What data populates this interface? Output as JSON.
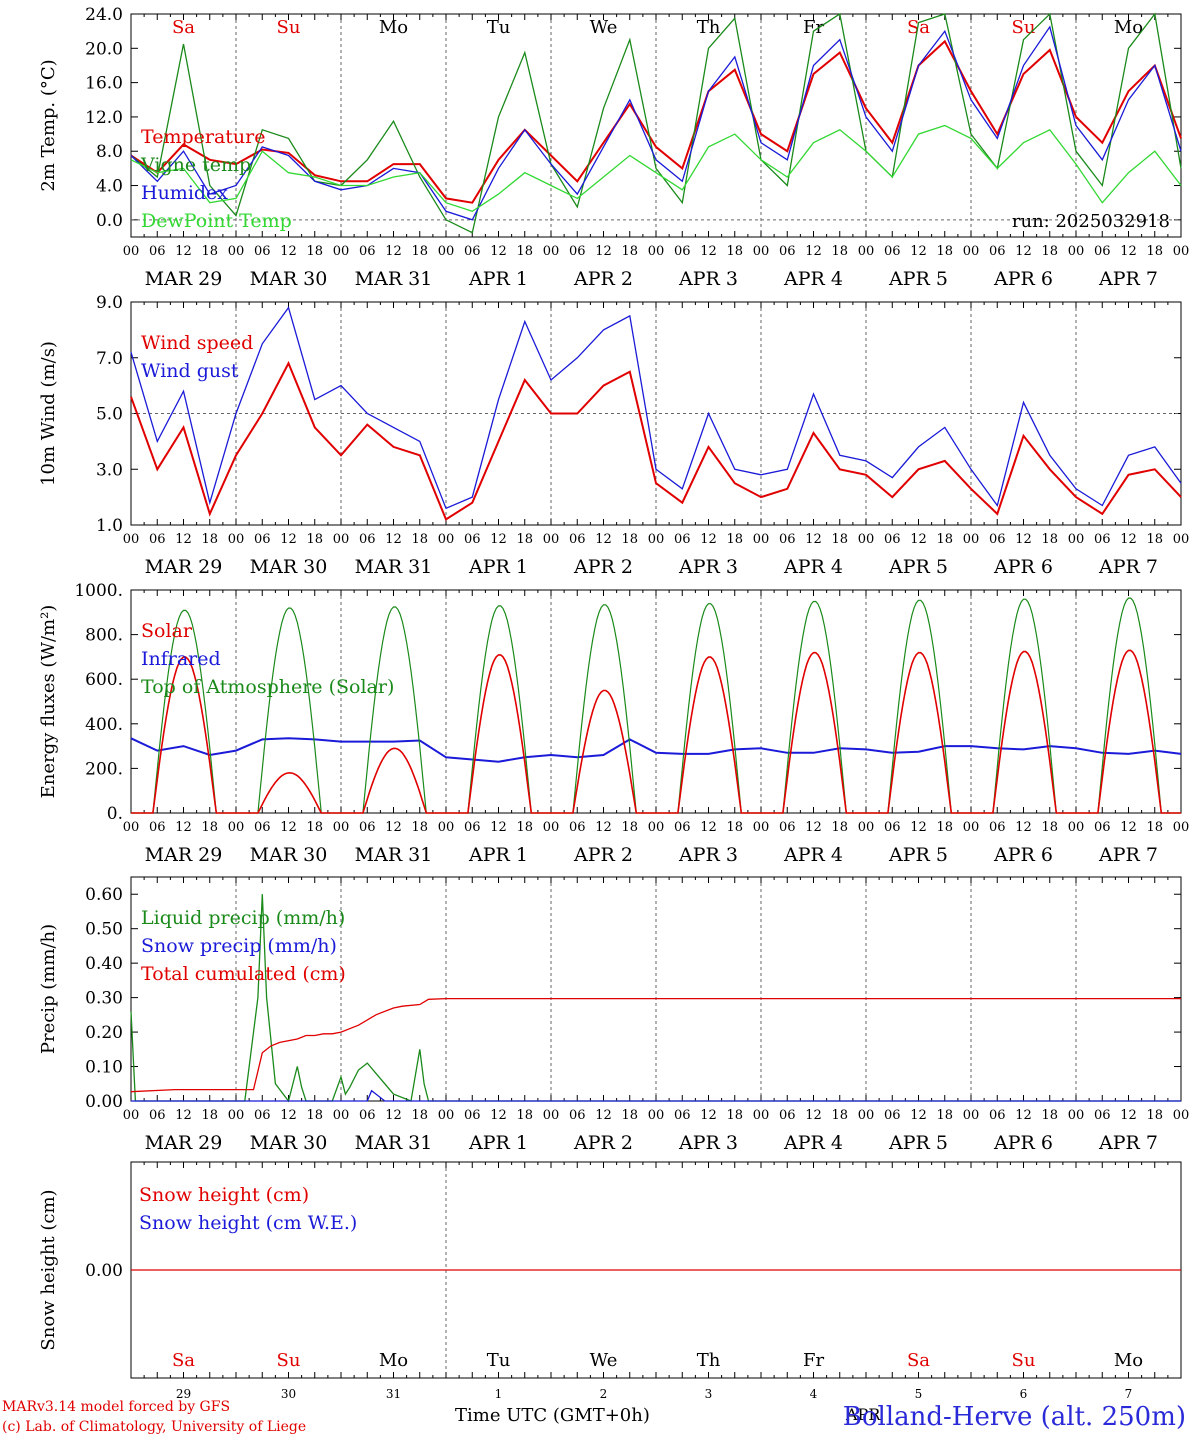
{
  "footer": {
    "model": "MARv3.14 model forced by GFS",
    "lab": "(c) Lab. of Climatology, University of Liege",
    "xlabel": "Time UTC (GMT+0h)",
    "station": "Bolland-Herve (alt. 250m)",
    "month": "APR"
  },
  "days": {
    "weekdays": [
      "Sa",
      "Su",
      "Mo",
      "Tu",
      "We",
      "Th",
      "Fr",
      "Sa",
      "Su",
      "Mo"
    ],
    "weekend_color": "#e00000",
    "weekday_color": "#000000",
    "date_labels": [
      "MAR 29",
      "MAR 30",
      "MAR 31",
      "APR  1",
      "APR  2",
      "APR  3",
      "APR  4",
      "APR  5",
      "APR  6",
      "APR  7"
    ],
    "day_numbers": [
      "29",
      "30",
      "31",
      "1",
      "2",
      "3",
      "4",
      "5",
      "6",
      "7"
    ],
    "hour_ticks": [
      "00",
      "06",
      "12",
      "18"
    ],
    "final_tick": "00"
  },
  "chart_data": [
    {
      "type": "line",
      "ylabel": "2m Temp. (°C)",
      "ylim": [
        -2,
        24
      ],
      "yticks": [
        "24.0",
        "20.0",
        "16.0",
        "12.0",
        "8.0",
        "4.0",
        "0.0"
      ],
      "ytick_values": [
        24,
        20,
        16,
        12,
        8,
        4,
        0
      ],
      "annotation": "run: 2025032918",
      "dashed_y": 0,
      "x_unit": "hours since MAR 29 00 UTC",
      "series": [
        {
          "name": "Temperature",
          "color": "#e00000",
          "x": [
            0,
            6,
            12,
            18,
            24,
            30,
            36,
            42,
            48,
            54,
            60,
            66,
            72,
            78,
            84,
            90,
            96,
            102,
            108,
            114,
            120,
            126,
            132,
            138,
            144,
            150,
            156,
            162,
            168,
            174,
            180,
            186,
            192,
            198,
            204,
            210,
            216,
            222,
            228,
            234,
            240
          ],
          "values": [
            7.5,
            5.5,
            8.8,
            7.0,
            6.5,
            8.2,
            7.8,
            5.2,
            4.5,
            4.5,
            6.5,
            6.5,
            2.5,
            2.0,
            7.0,
            10.5,
            7.5,
            4.5,
            9.0,
            13.5,
            8.5,
            6.0,
            15.0,
            17.5,
            10.0,
            8.0,
            17.0,
            19.5,
            13.0,
            9.0,
            18.0,
            20.8,
            15.0,
            10.0,
            17.0,
            19.8,
            12.0,
            9.0,
            15.0,
            18.0,
            9.5
          ]
        },
        {
          "name": "Vigne temp",
          "color": "#1a8a1a",
          "x": [
            0,
            6,
            12,
            18,
            24,
            30,
            36,
            42,
            48,
            54,
            60,
            66,
            72,
            78,
            84,
            90,
            96,
            102,
            108,
            114,
            120,
            126,
            132,
            138,
            144,
            150,
            156,
            162,
            168,
            174,
            180,
            186,
            192,
            198,
            204,
            210,
            216,
            222,
            228,
            234,
            240
          ],
          "values": [
            7.5,
            5.0,
            20.5,
            4.0,
            0.5,
            10.5,
            9.5,
            4.5,
            4.0,
            7.0,
            11.5,
            5.0,
            0.0,
            -1.5,
            12.0,
            19.5,
            6.5,
            1.5,
            13.0,
            21.0,
            6.0,
            2.0,
            20.0,
            23.5,
            7.0,
            4.0,
            22.0,
            24.0,
            8.0,
            5.0,
            23.0,
            24.0,
            10.0,
            6.0,
            21.0,
            24.0,
            8.0,
            4.0,
            20.0,
            24.0,
            6.0
          ]
        },
        {
          "name": "Humidex",
          "color": "#1a1ad8",
          "x": [
            0,
            6,
            12,
            18,
            24,
            30,
            36,
            42,
            48,
            54,
            60,
            66,
            72,
            78,
            84,
            90,
            96,
            102,
            108,
            114,
            120,
            126,
            132,
            138,
            144,
            150,
            156,
            162,
            168,
            174,
            180,
            186,
            192,
            198,
            204,
            210,
            216,
            222,
            228,
            234,
            240
          ],
          "values": [
            7.5,
            4.5,
            8.0,
            3.0,
            4.0,
            8.5,
            7.5,
            4.5,
            3.5,
            4.0,
            6.0,
            5.5,
            1.0,
            0.0,
            6.0,
            10.5,
            6.5,
            3.0,
            8.5,
            14.0,
            7.0,
            4.5,
            15.0,
            19.0,
            9.0,
            7.0,
            18.0,
            21.0,
            12.0,
            8.0,
            18.0,
            22.0,
            14.0,
            9.5,
            18.0,
            22.5,
            11.0,
            7.0,
            14.0,
            18.0,
            8.0
          ]
        },
        {
          "name": "DewPoint Temp",
          "color": "#33d833",
          "x": [
            0,
            6,
            12,
            18,
            24,
            30,
            36,
            42,
            48,
            54,
            60,
            66,
            72,
            78,
            84,
            90,
            96,
            102,
            108,
            114,
            120,
            126,
            132,
            138,
            144,
            150,
            156,
            162,
            168,
            174,
            180,
            186,
            192,
            198,
            204,
            210,
            216,
            222,
            228,
            234,
            240
          ],
          "values": [
            7.0,
            5.5,
            6.0,
            2.0,
            2.5,
            8.0,
            5.5,
            5.0,
            4.0,
            4.0,
            5.0,
            5.5,
            2.0,
            1.0,
            3.0,
            5.5,
            4.0,
            2.5,
            5.0,
            7.5,
            5.5,
            3.5,
            8.5,
            10.0,
            7.0,
            5.0,
            9.0,
            10.5,
            8.0,
            5.0,
            10.0,
            11.0,
            9.5,
            6.0,
            9.0,
            10.5,
            6.5,
            2.0,
            5.5,
            8.0,
            4.0
          ]
        }
      ]
    },
    {
      "type": "line",
      "ylabel": "10m Wind (m/s)",
      "ylim": [
        1,
        9
      ],
      "yticks": [
        "9.0",
        "7.0",
        "5.0",
        "3.0",
        "1.0"
      ],
      "ytick_values": [
        9,
        7,
        5,
        3,
        1
      ],
      "dashed_y": 5,
      "x_unit": "hours since MAR 29 00 UTC",
      "series": [
        {
          "name": "Wind speed",
          "color": "#e00000",
          "x": [
            0,
            6,
            12,
            18,
            24,
            30,
            36,
            42,
            48,
            54,
            60,
            66,
            72,
            78,
            84,
            90,
            96,
            102,
            108,
            114,
            120,
            126,
            132,
            138,
            144,
            150,
            156,
            162,
            168,
            174,
            180,
            186,
            192,
            198,
            204,
            210,
            216,
            222,
            228,
            234,
            240
          ],
          "values": [
            5.6,
            3.0,
            4.5,
            1.4,
            3.5,
            5.0,
            6.8,
            4.5,
            3.5,
            4.6,
            3.8,
            3.5,
            1.2,
            1.8,
            4.0,
            6.2,
            5.0,
            5.0,
            6.0,
            6.5,
            2.5,
            1.8,
            3.8,
            2.5,
            2.0,
            2.3,
            4.3,
            3.0,
            2.8,
            2.0,
            3.0,
            3.3,
            2.3,
            1.4,
            4.2,
            3.0,
            2.0,
            1.4,
            2.8,
            3.0,
            2.0
          ]
        },
        {
          "name": "Wind gust",
          "color": "#1a1ad8",
          "x": [
            0,
            6,
            12,
            18,
            24,
            30,
            36,
            42,
            48,
            54,
            60,
            66,
            72,
            78,
            84,
            90,
            96,
            102,
            108,
            114,
            120,
            126,
            132,
            138,
            144,
            150,
            156,
            162,
            168,
            174,
            180,
            186,
            192,
            198,
            204,
            210,
            216,
            222,
            228,
            234,
            240
          ],
          "values": [
            7.2,
            4.0,
            5.8,
            1.8,
            5.0,
            7.5,
            8.8,
            5.5,
            6.0,
            5.0,
            4.5,
            4.0,
            1.6,
            2.0,
            5.5,
            8.3,
            6.2,
            7.0,
            8.0,
            8.5,
            3.0,
            2.3,
            5.0,
            3.0,
            2.8,
            3.0,
            5.7,
            3.5,
            3.3,
            2.7,
            3.8,
            4.5,
            3.0,
            1.7,
            5.4,
            3.5,
            2.3,
            1.7,
            3.5,
            3.8,
            2.5
          ]
        }
      ]
    },
    {
      "type": "line",
      "ylabel": "Energy fluxes (W/m²)",
      "ylim": [
        0,
        1000
      ],
      "yticks": [
        "1000.",
        "800.",
        "600.",
        "400.",
        "200.",
        "0."
      ],
      "ytick_values": [
        1000,
        800,
        600,
        400,
        200,
        0
      ],
      "x_unit": "hours since MAR 29 00 UTC",
      "series": [
        {
          "name": "Solar",
          "color": "#e00000"
        },
        {
          "name": "Infrared",
          "color": "#1a1ad8",
          "x": [
            0,
            6,
            12,
            18,
            24,
            30,
            36,
            42,
            48,
            54,
            60,
            66,
            72,
            78,
            84,
            90,
            96,
            102,
            108,
            114,
            120,
            126,
            132,
            138,
            144,
            150,
            156,
            162,
            168,
            174,
            180,
            186,
            192,
            198,
            204,
            210,
            216,
            222,
            228,
            234,
            240
          ],
          "values": [
            335,
            280,
            300,
            260,
            280,
            330,
            335,
            330,
            320,
            320,
            320,
            325,
            250,
            240,
            230,
            250,
            260,
            250,
            260,
            330,
            270,
            265,
            265,
            285,
            290,
            270,
            270,
            290,
            285,
            270,
            275,
            300,
            300,
            290,
            285,
            300,
            290,
            270,
            265,
            280,
            265
          ]
        },
        {
          "name": "Top of Atmosphere (Solar)",
          "color": "#1a8a1a"
        }
      ],
      "daily_peaks": {
        "x_unit": "hours since MAR 29 00 UTC",
        "peak_hour": 13,
        "toa": [
          910,
          920,
          925,
          930,
          935,
          940,
          950,
          955,
          960,
          965
        ],
        "solar": [
          700,
          180,
          290,
          710,
          550,
          700,
          720,
          720,
          725,
          730
        ]
      }
    },
    {
      "type": "line",
      "ylabel": "Precip (mm/h)",
      "ylim": [
        0,
        0.65
      ],
      "yticks": [
        "0.60",
        "0.50",
        "0.40",
        "0.30",
        "0.20",
        "0.10",
        "0.00"
      ],
      "ytick_values": [
        0.6,
        0.5,
        0.4,
        0.3,
        0.2,
        0.1,
        0
      ],
      "x_unit": "hours since MAR 29 00 UTC",
      "series": [
        {
          "name": "Liquid precip (mm/h)",
          "color": "#1a8a1a",
          "x": [
            0,
            1,
            2,
            4,
            6,
            8,
            10,
            26,
            29,
            30,
            31,
            33,
            36,
            38,
            39,
            40,
            42,
            46,
            48,
            49,
            50,
            52,
            54,
            56,
            60,
            64,
            66,
            67,
            68,
            70,
            240
          ],
          "values": [
            0.26,
            0.0,
            0.0,
            0.0,
            0.0,
            0.0,
            0.0,
            0.0,
            0.3,
            0.6,
            0.3,
            0.05,
            0.0,
            0.1,
            0.04,
            0.0,
            0.0,
            0.0,
            0.07,
            0.02,
            0.04,
            0.09,
            0.11,
            0.08,
            0.02,
            0.0,
            0.15,
            0.05,
            0.0,
            0.0,
            0.0
          ]
        },
        {
          "name": "Snow precip (mm/h)",
          "color": "#1a1ad8",
          "x": [
            0,
            50,
            54,
            55,
            56,
            58,
            60,
            240
          ],
          "values": [
            0.0,
            0.0,
            0.0,
            0.03,
            0.02,
            0.0,
            0.0,
            0.0
          ]
        },
        {
          "name": "Total cumulated (cm)",
          "color": "#e00000",
          "x": [
            0,
            10,
            28,
            30,
            32,
            34,
            38,
            40,
            42,
            44,
            46,
            48,
            52,
            56,
            60,
            62,
            66,
            68,
            72,
            240
          ],
          "values": [
            0.027,
            0.033,
            0.033,
            0.14,
            0.16,
            0.17,
            0.18,
            0.19,
            0.19,
            0.195,
            0.195,
            0.2,
            0.22,
            0.25,
            0.27,
            0.275,
            0.28,
            0.295,
            0.297,
            0.297
          ]
        }
      ]
    },
    {
      "type": "line",
      "ylabel": "Snow height (cm)",
      "ylim": [
        -1,
        1
      ],
      "yticks": [
        "0.00"
      ],
      "ytick_values": [
        0
      ],
      "x_unit": "hours since MAR 29 00 UTC",
      "series": [
        {
          "name": "Snow height (cm)",
          "color": "#e00000",
          "x": [
            0,
            240
          ],
          "values": [
            0,
            0
          ]
        },
        {
          "name": "Snow height (cm W.E.)",
          "color": "#1a1ad8"
        }
      ]
    }
  ]
}
